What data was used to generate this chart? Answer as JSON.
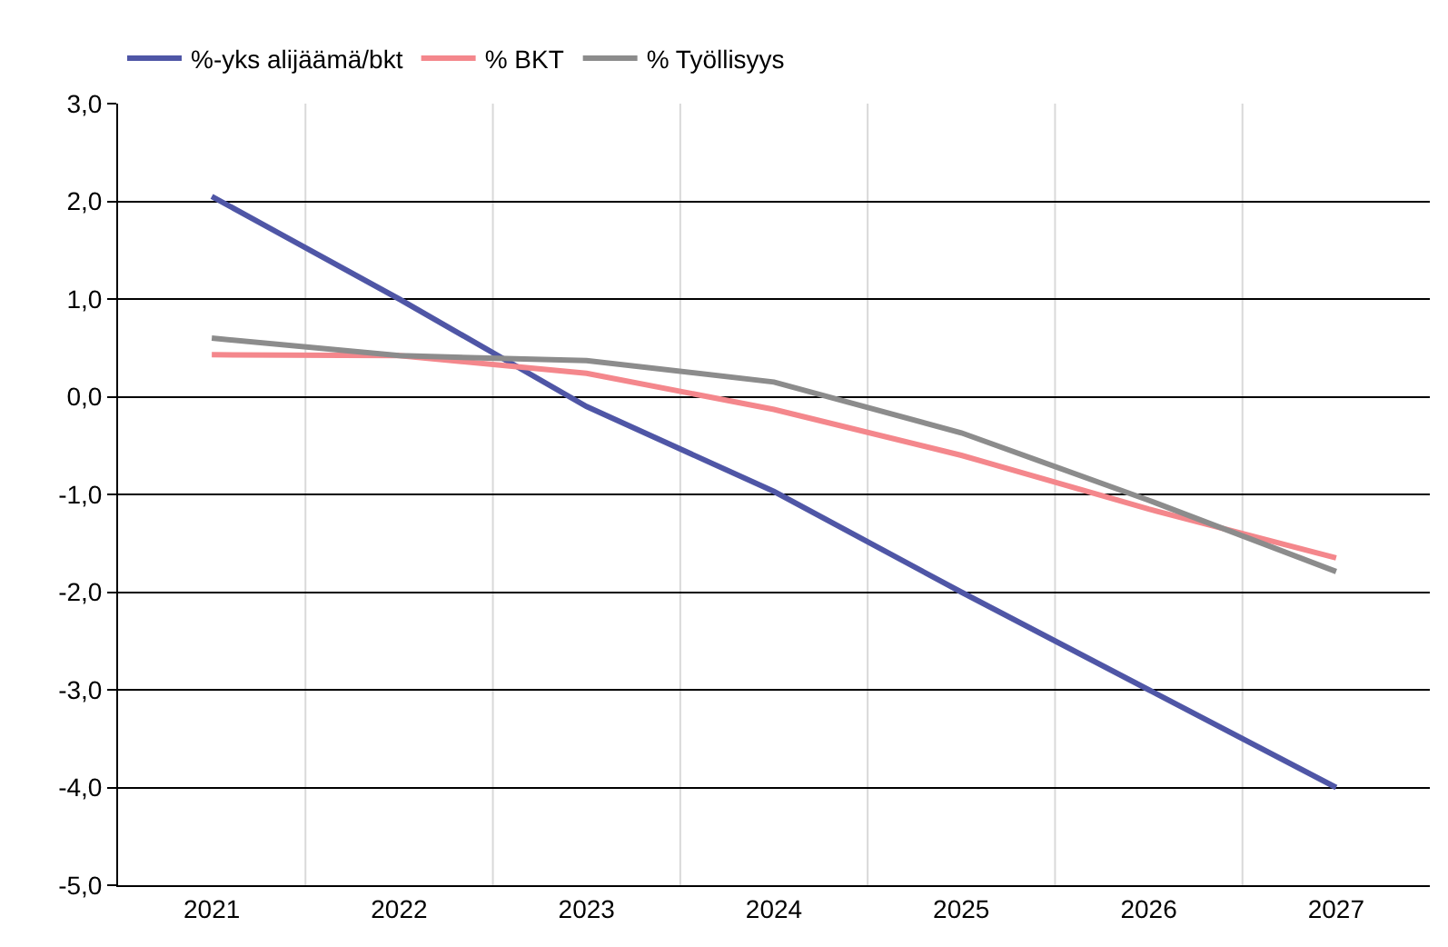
{
  "chart_data": {
    "type": "line",
    "categories": [
      "2021",
      "2022",
      "2023",
      "2024",
      "2025",
      "2026",
      "2027"
    ],
    "series": [
      {
        "name": "%-yks alijäämä/bkt",
        "color": "#4f56a6",
        "values": [
          2.05,
          1.0,
          -0.1,
          -0.97,
          -2.0,
          -3.0,
          -4.0
        ]
      },
      {
        "name": "% BKT",
        "color": "#f4878c",
        "values": [
          0.43,
          0.42,
          0.24,
          -0.13,
          -0.6,
          -1.15,
          -1.65
        ]
      },
      {
        "name": "% Työllisyys",
        "color": "#8c8c8c",
        "values": [
          0.6,
          0.42,
          0.37,
          0.15,
          -0.37,
          -1.06,
          -1.79
        ]
      }
    ],
    "ylim": [
      -5,
      3
    ],
    "yticks": [
      {
        "value": -5,
        "label": "-5,0"
      },
      {
        "value": -4,
        "label": "-4,0"
      },
      {
        "value": -3,
        "label": "-3,0"
      },
      {
        "value": -2,
        "label": "-2,0"
      },
      {
        "value": -1,
        "label": "-1,0"
      },
      {
        "value": 0,
        "label": "0,0"
      },
      {
        "value": 1,
        "label": "1,0"
      },
      {
        "value": 2,
        "label": "2,0"
      },
      {
        "value": 3,
        "label": "3,0"
      }
    ],
    "grid": true,
    "legend": "top left",
    "marker": "none",
    "line_style": "solid"
  }
}
